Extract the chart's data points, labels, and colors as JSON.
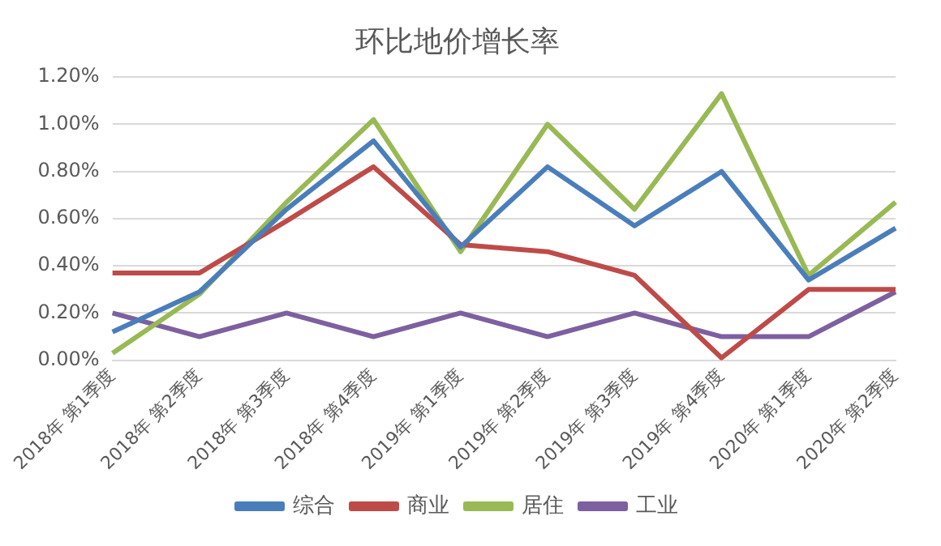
{
  "chart_data": {
    "type": "line",
    "title": "环比地价增长率",
    "categories": [
      "2018年 第1季度",
      "2018年 第2季度",
      "2018年 第3季度",
      "2018年 第4季度",
      "2019年 第1季度",
      "2019年 第2季度",
      "2019年 第3季度",
      "2019年 第4季度",
      "2020年 第1季度",
      "2020年 第2季度"
    ],
    "series": [
      {
        "name": "综合",
        "color": "#4a7ebb",
        "values": [
          0.12,
          0.29,
          0.64,
          0.93,
          0.48,
          0.82,
          0.57,
          0.8,
          0.34,
          0.56
        ]
      },
      {
        "name": "商业",
        "color": "#be4b48",
        "values": [
          0.37,
          0.37,
          0.59,
          0.82,
          0.49,
          0.46,
          0.36,
          0.01,
          0.3,
          0.3
        ]
      },
      {
        "name": "居住",
        "color": "#98b954",
        "values": [
          0.03,
          0.28,
          0.67,
          1.02,
          0.46,
          1.0,
          0.64,
          1.13,
          0.36,
          0.67
        ]
      },
      {
        "name": "工业",
        "color": "#7d60a0",
        "values": [
          0.2,
          0.1,
          0.2,
          0.1,
          0.2,
          0.1,
          0.2,
          0.1,
          0.1,
          0.29
        ]
      }
    ],
    "ylim": [
      0,
      1.2
    ],
    "yticks": [
      {
        "value": 0,
        "label": "0.00%"
      },
      {
        "value": 0.2,
        "label": "0.20%"
      },
      {
        "value": 0.4,
        "label": "0.40%"
      },
      {
        "value": 0.6,
        "label": "0.60%"
      },
      {
        "value": 0.8,
        "label": "0.80%"
      },
      {
        "value": 1.0,
        "label": "1.00%"
      },
      {
        "value": 1.2,
        "label": "1.20%"
      }
    ],
    "grid": "y",
    "legend": "bottom",
    "marker": "none",
    "line_style": "solid"
  }
}
